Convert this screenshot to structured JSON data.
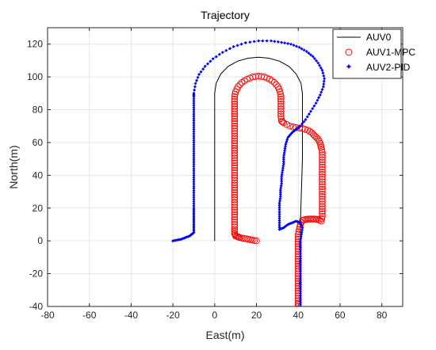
{
  "chart_data": {
    "type": "line",
    "title": "Trajectory",
    "xlabel": "East(m)",
    "ylabel": "North(m)",
    "xlim": [
      -80,
      90
    ],
    "ylim": [
      -40,
      130
    ],
    "xticks": [
      -80,
      -60,
      -40,
      -20,
      0,
      20,
      40,
      60,
      80
    ],
    "yticks": [
      -40,
      -20,
      0,
      20,
      40,
      60,
      80,
      100,
      120
    ],
    "grid": true,
    "legend_position": "top-right",
    "series": [
      {
        "name": "AUV0",
        "style": "line",
        "color": "#000000",
        "points": [
          [
            0,
            0
          ],
          [
            0,
            90
          ],
          [
            0.7,
            96.2
          ],
          [
            2.9,
            101.8
          ],
          [
            6.4,
            106.4
          ],
          [
            11,
            109.6
          ],
          [
            16,
            111.4
          ],
          [
            21,
            112
          ],
          [
            26,
            111.4
          ],
          [
            31,
            109.6
          ],
          [
            35.6,
            106.4
          ],
          [
            39,
            101.8
          ],
          [
            41.3,
            96.2
          ],
          [
            42,
            90
          ],
          [
            42,
            70
          ],
          [
            42,
            50
          ],
          [
            41.5,
            30
          ],
          [
            41,
            10
          ],
          [
            41,
            -40
          ]
        ]
      },
      {
        "name": "AUV1-MPC",
        "style": "circle",
        "color": "#ff0000",
        "points": [
          [
            20,
            0
          ],
          [
            18,
            0.5
          ],
          [
            16,
            1
          ],
          [
            14,
            1.5
          ],
          [
            12,
            2
          ],
          [
            11,
            2.5
          ],
          [
            10,
            3
          ],
          [
            9.5,
            4.5
          ],
          [
            9.5,
            7
          ],
          [
            9.5,
            10
          ],
          [
            9.5,
            13
          ],
          [
            9.5,
            16
          ],
          [
            9.5,
            19
          ],
          [
            9.5,
            22
          ],
          [
            9.5,
            25
          ],
          [
            9.5,
            28
          ],
          [
            9.5,
            31
          ],
          [
            9.5,
            34
          ],
          [
            9.5,
            37
          ],
          [
            9.5,
            40
          ],
          [
            9.5,
            43
          ],
          [
            9.5,
            46
          ],
          [
            9.5,
            49
          ],
          [
            9.5,
            52
          ],
          [
            9.5,
            55
          ],
          [
            9.5,
            58
          ],
          [
            9.5,
            61
          ],
          [
            9.5,
            64
          ],
          [
            9.5,
            67
          ],
          [
            9.5,
            70
          ],
          [
            9.5,
            73
          ],
          [
            9.5,
            76
          ],
          [
            9.5,
            79
          ],
          [
            9.5,
            82
          ],
          [
            9.5,
            85
          ],
          [
            9.5,
            88
          ],
          [
            10,
            91
          ],
          [
            11.2,
            94
          ],
          [
            13,
            96.6
          ],
          [
            15.5,
            98.6
          ],
          [
            18.3,
            100
          ],
          [
            21,
            100.5
          ],
          [
            23.7,
            100
          ],
          [
            26.3,
            98.6
          ],
          [
            28.6,
            96.6
          ],
          [
            30.3,
            94
          ],
          [
            31.3,
            91
          ],
          [
            31.7,
            88
          ],
          [
            31.7,
            85
          ],
          [
            31.7,
            82
          ],
          [
            31.7,
            79
          ],
          [
            31.7,
            76
          ],
          [
            32,
            73
          ],
          [
            33,
            72
          ],
          [
            36,
            70
          ],
          [
            39,
            69
          ],
          [
            42,
            68.5
          ],
          [
            44.5,
            67.5
          ],
          [
            46.5,
            66
          ],
          [
            48,
            64
          ],
          [
            49.5,
            62
          ],
          [
            50.5,
            59.5
          ],
          [
            51,
            57
          ],
          [
            51.5,
            54
          ],
          [
            51.5,
            51
          ],
          [
            51.5,
            48
          ],
          [
            51.5,
            45
          ],
          [
            51.5,
            42
          ],
          [
            51.5,
            39
          ],
          [
            51.5,
            36
          ],
          [
            51.5,
            33
          ],
          [
            51.5,
            30
          ],
          [
            51.5,
            27
          ],
          [
            51.5,
            24
          ],
          [
            51.5,
            21
          ],
          [
            51.5,
            18
          ],
          [
            51.5,
            15
          ],
          [
            51,
            12
          ],
          [
            49.5,
            13
          ],
          [
            48,
            13.3
          ],
          [
            46.5,
            13.3
          ],
          [
            45,
            13.3
          ],
          [
            43.5,
            13
          ],
          [
            42,
            12.5
          ],
          [
            41,
            10
          ],
          [
            40.5,
            7
          ],
          [
            40,
            4
          ],
          [
            40,
            1
          ],
          [
            40,
            -2
          ],
          [
            40,
            -5
          ],
          [
            40,
            -8
          ],
          [
            40,
            -11
          ],
          [
            40,
            -14
          ],
          [
            40,
            -17
          ],
          [
            40,
            -20
          ],
          [
            40,
            -23
          ],
          [
            40,
            -26
          ],
          [
            40,
            -29
          ],
          [
            40,
            -32
          ],
          [
            40,
            -35
          ],
          [
            40,
            -38
          ],
          [
            40,
            -40
          ]
        ]
      },
      {
        "name": "AUV2-PID",
        "style": "dot",
        "color": "#0000ff",
        "points": [
          [
            -20,
            0
          ],
          [
            -18,
            0.5
          ],
          [
            -16,
            1
          ],
          [
            -14,
            2
          ],
          [
            -12,
            3
          ],
          [
            -11,
            4
          ],
          [
            -10,
            5
          ],
          [
            -10,
            8
          ],
          [
            -10,
            11
          ],
          [
            -10,
            14
          ],
          [
            -10,
            17
          ],
          [
            -10,
            20
          ],
          [
            -10,
            24
          ],
          [
            -10,
            28
          ],
          [
            -10,
            32
          ],
          [
            -10,
            36
          ],
          [
            -10,
            40
          ],
          [
            -10,
            44
          ],
          [
            -10,
            48
          ],
          [
            -10,
            52
          ],
          [
            -10,
            56
          ],
          [
            -10,
            60
          ],
          [
            -10,
            64
          ],
          [
            -10,
            68
          ],
          [
            -10,
            72
          ],
          [
            -10,
            76
          ],
          [
            -10,
            80
          ],
          [
            -10,
            84
          ],
          [
            -10,
            88
          ],
          [
            -10,
            90
          ],
          [
            -9.2,
            96
          ],
          [
            -7.5,
            101.5
          ],
          [
            -4.6,
            106.5
          ],
          [
            -0.8,
            111
          ],
          [
            3.8,
            115
          ],
          [
            9,
            118.4
          ],
          [
            14.8,
            120.8
          ],
          [
            21,
            122
          ],
          [
            27,
            122
          ],
          [
            32,
            121
          ],
          [
            36.5,
            120
          ],
          [
            40.5,
            118
          ],
          [
            44,
            115.5
          ],
          [
            47,
            112.5
          ],
          [
            49.5,
            108.5
          ],
          [
            51.5,
            104
          ],
          [
            52.5,
            99
          ],
          [
            52,
            94
          ],
          [
            50.5,
            89
          ],
          [
            48.5,
            84
          ],
          [
            46,
            79
          ],
          [
            43.5,
            74
          ],
          [
            41,
            70
          ],
          [
            39,
            68
          ],
          [
            37,
            66
          ],
          [
            35,
            63
          ],
          [
            34,
            59
          ],
          [
            33.5,
            55
          ],
          [
            33,
            51
          ],
          [
            33,
            47
          ],
          [
            32.5,
            43
          ],
          [
            32,
            39
          ],
          [
            32,
            35
          ],
          [
            31.5,
            31
          ],
          [
            31.5,
            27
          ],
          [
            31,
            23
          ],
          [
            31,
            19
          ],
          [
            31,
            15
          ],
          [
            31,
            11
          ],
          [
            31,
            7
          ],
          [
            33,
            8
          ],
          [
            35,
            10
          ],
          [
            37,
            11
          ],
          [
            39,
            12
          ],
          [
            41,
            11
          ],
          [
            42,
            8
          ],
          [
            41.5,
            4
          ],
          [
            41,
            0
          ],
          [
            41,
            -4
          ],
          [
            41,
            -8
          ],
          [
            41,
            -12
          ],
          [
            41,
            -16
          ],
          [
            41,
            -20
          ],
          [
            41,
            -24
          ],
          [
            41,
            -28
          ],
          [
            41,
            -32
          ],
          [
            41,
            -36
          ],
          [
            41,
            -40
          ]
        ]
      }
    ]
  }
}
